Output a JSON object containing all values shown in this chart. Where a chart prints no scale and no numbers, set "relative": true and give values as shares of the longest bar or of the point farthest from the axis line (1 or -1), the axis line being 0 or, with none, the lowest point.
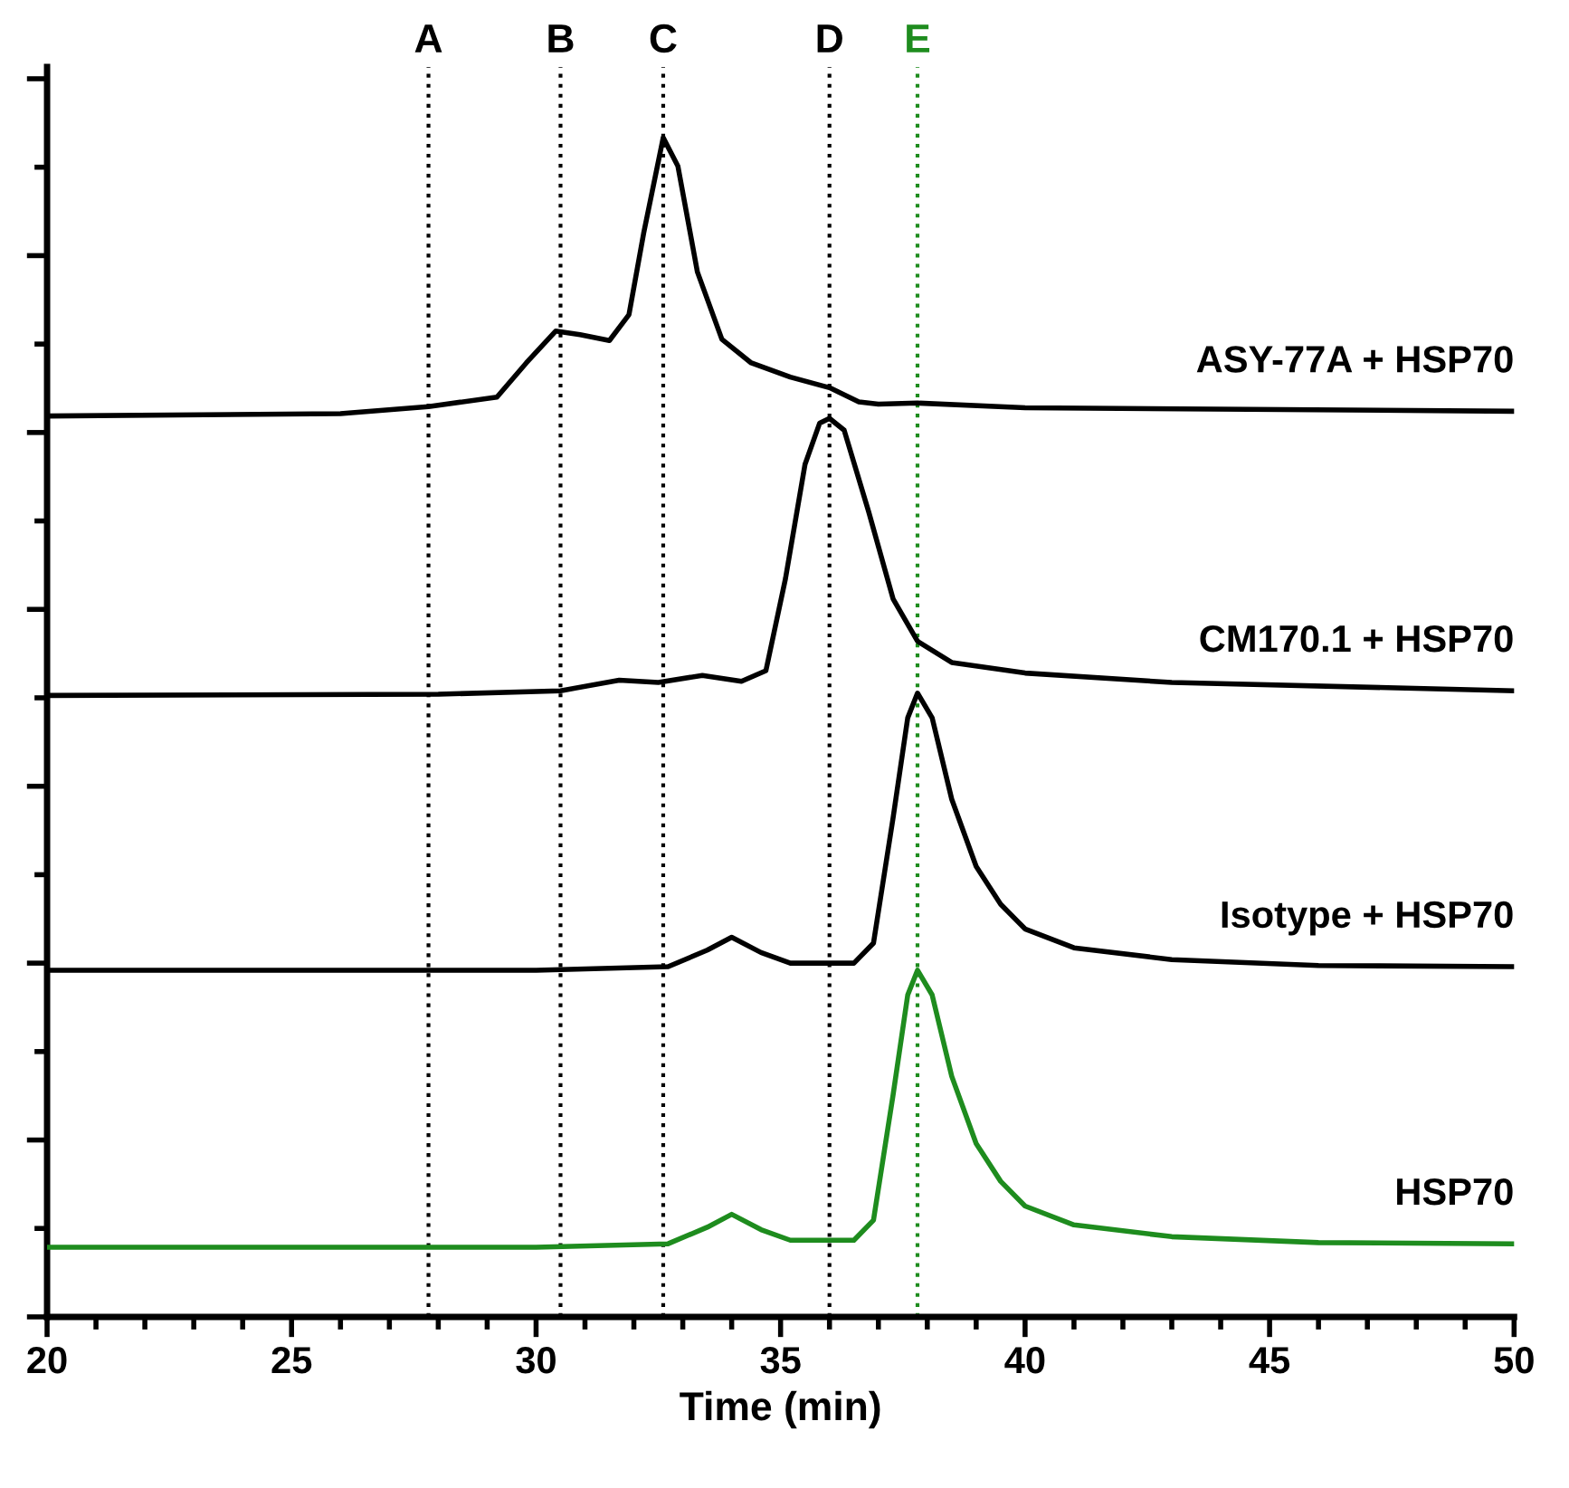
{
  "chart_data": {
    "type": "line",
    "relative": true,
    "xlabel": "Time (min)",
    "xlim": [
      20,
      50
    ],
    "xticks": [
      20,
      25,
      30,
      35,
      40,
      45,
      50
    ],
    "tick_labels": "x",
    "legend": false,
    "grid": false,
    "marker": "none",
    "line_style": "solid",
    "series": [
      {
        "name": "ASY-77A + HSP70",
        "color": "#000000",
        "x": [
          20,
          26,
          27.8,
          29.2,
          29.8,
          30.4,
          30.9,
          31.5,
          31.9,
          32.2,
          32.6,
          32.9,
          33.3,
          33.8,
          34.4,
          35.2,
          36.0,
          36.6,
          37.0,
          37.8,
          40,
          50
        ],
        "values": [
          0.764,
          0.766,
          0.772,
          0.78,
          0.809,
          0.836,
          0.833,
          0.828,
          0.85,
          0.919,
          1.0,
          0.976,
          0.886,
          0.829,
          0.809,
          0.797,
          0.788,
          0.776,
          0.774,
          0.775,
          0.771,
          0.768
        ]
      },
      {
        "name": "CM170.1 + HSP70",
        "color": "#000000",
        "x": [
          20,
          28,
          30.5,
          31.7,
          32.5,
          33.4,
          34.2,
          34.7,
          35.1,
          35.5,
          35.8,
          36.0,
          36.3,
          36.8,
          37.3,
          37.8,
          38.5,
          40,
          43,
          50
        ],
        "values": [
          0.527,
          0.528,
          0.531,
          0.54,
          0.538,
          0.544,
          0.539,
          0.548,
          0.626,
          0.723,
          0.758,
          0.762,
          0.752,
          0.683,
          0.609,
          0.573,
          0.555,
          0.546,
          0.538,
          0.531
        ]
      },
      {
        "name": "Isotype + HSP70",
        "color": "#000000",
        "x": [
          20,
          30,
          32.7,
          33.5,
          34.0,
          34.6,
          35.2,
          36.5,
          36.9,
          37.3,
          37.6,
          37.8,
          38.1,
          38.5,
          39.0,
          39.5,
          40,
          41,
          43,
          46,
          50
        ],
        "values": [
          0.294,
          0.294,
          0.297,
          0.311,
          0.322,
          0.309,
          0.3,
          0.3,
          0.317,
          0.423,
          0.508,
          0.529,
          0.508,
          0.439,
          0.382,
          0.35,
          0.329,
          0.313,
          0.303,
          0.298,
          0.297
        ]
      },
      {
        "name": "HSP70",
        "color": "#1e8c1e",
        "x": [
          20,
          30,
          32.7,
          33.5,
          34.0,
          34.6,
          35.2,
          36.5,
          36.9,
          37.3,
          37.6,
          37.8,
          38.1,
          38.5,
          39.0,
          39.5,
          40,
          41,
          43,
          46,
          50
        ],
        "values": [
          0.059,
          0.059,
          0.062,
          0.076,
          0.087,
          0.074,
          0.065,
          0.065,
          0.082,
          0.188,
          0.273,
          0.294,
          0.273,
          0.204,
          0.147,
          0.115,
          0.094,
          0.078,
          0.068,
          0.063,
          0.062
        ]
      }
    ],
    "ref_lines": [
      {
        "axis": "x",
        "value": 27.8,
        "label": "A",
        "color": "#000000",
        "line_style": "dotted"
      },
      {
        "axis": "x",
        "value": 30.5,
        "label": "B",
        "color": "#000000",
        "line_style": "dotted"
      },
      {
        "axis": "x",
        "value": 32.6,
        "label": "C",
        "color": "#000000",
        "line_style": "dotted"
      },
      {
        "axis": "x",
        "value": 36.0,
        "label": "D",
        "color": "#000000",
        "line_style": "dotted"
      },
      {
        "axis": "x",
        "value": 37.8,
        "label": "E",
        "color": "#1e8c1e",
        "line_style": "dotted"
      }
    ]
  }
}
